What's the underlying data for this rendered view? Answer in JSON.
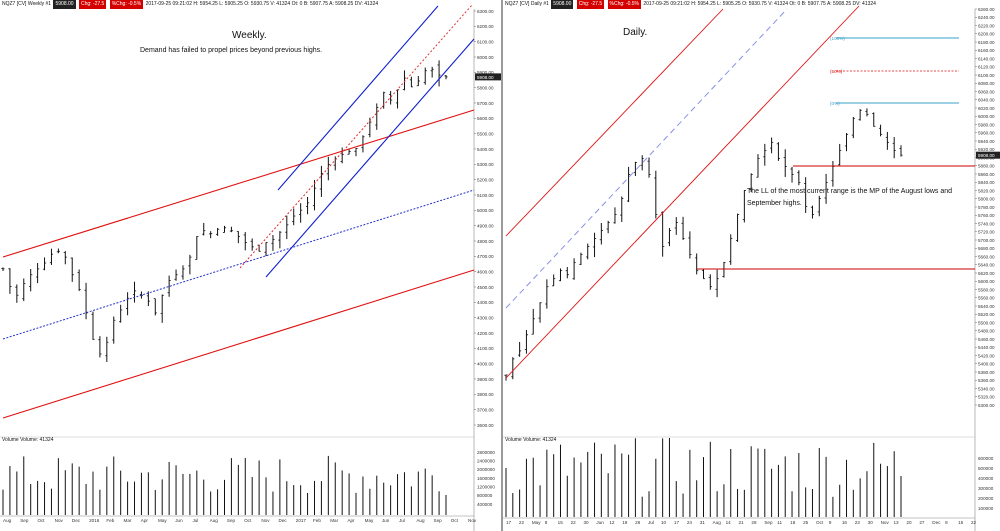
{
  "colors": {
    "up_bar": "#111111",
    "channel_red": "#e01010",
    "channel_blue": "#1020d0",
    "midline_blue": "#2233cc",
    "trend_red_dashed": "#e03030",
    "fib_line": "#3aa0c8",
    "range_red": "#cc0000",
    "price_tag_bg": "#222222"
  },
  "left": {
    "titlebar": {
      "symbol": "NQZ7 [CV]  Weekly  #1",
      "tag1": "5908.00",
      "tag2": "Chg: -27.5",
      "tag3": "%Chg: -0.5%",
      "info": "2017-09-25 09:21:02 H: 5954.25 L: 5905.25 O: 5930.75 V: 41324 Ot: 0 B: 5907.75 A: 5908.25 DV: 41324"
    },
    "title": "Weekly.",
    "subtitle": "Demand has failed to propel prices beyond previous highs.",
    "last_price": "5908.00",
    "volume_label": "Volume  Volume: 41324",
    "y_ticks": [
      "6300.00",
      "6200.00",
      "6100.00",
      "6000.00",
      "5900.00",
      "5800.00",
      "5700.00",
      "5600.00",
      "5500.00",
      "5400.00",
      "5300.00",
      "5200.00",
      "5100.00",
      "5000.00",
      "4900.00",
      "4800.00",
      "4700.00",
      "4600.00",
      "4500.00",
      "4400.00",
      "4300.00",
      "4200.00",
      "4100.00",
      "4000.00",
      "3900.00",
      "3800.00",
      "3700.00",
      "3600.00"
    ],
    "vol_ticks": [
      "2800000",
      "2400000",
      "2000000",
      "1600000",
      "1200000",
      "800000",
      "400000"
    ],
    "x_ticks": [
      "Aug",
      "Sep",
      "Oct",
      "Nov",
      "Dec",
      "2016",
      "Feb",
      "Mar",
      "Apr",
      "May",
      "Jun",
      "Jul",
      "Aug",
      "Sep",
      "Oct",
      "Nov",
      "Dec",
      "2017",
      "Feb",
      "Mar",
      "Apr",
      "May",
      "Jun",
      "Jul",
      "Aug",
      "Sep",
      "Oct",
      "Nov"
    ]
  },
  "right": {
    "titlebar": {
      "symbol": "NQZ7 [CV]  Daily  #1",
      "tag1": "5908.00",
      "tag2": "Chg: -27.5",
      "tag3": "%Chg: -0.5%",
      "info": "2017-09-25 09:21:02 H: 5954.25 L: 5905.25 O: 5930.75 V: 41324 Ot: 0 B: 5907.75 A: 5908.25 DV: 41324"
    },
    "title": "Daily.",
    "note": "The LL of the most current range is the MP of the August lows and September highs.",
    "fib_100": "(100%)",
    "fib_50": "(50%)",
    "fib_0": "(0%)",
    "last_price": "5908.00",
    "volume_label": "Volume  Volume: 41324",
    "y_ticks": [
      "6260.00",
      "6240.00",
      "6220.00",
      "6200.00",
      "6180.00",
      "6160.00",
      "6140.00",
      "6120.00",
      "6100.00",
      "6080.00",
      "6060.00",
      "6040.00",
      "6020.00",
      "6000.00",
      "5980.00",
      "5960.00",
      "5940.00",
      "5920.00",
      "5900.00",
      "5880.00",
      "5860.00",
      "5840.00",
      "5820.00",
      "5800.00",
      "5780.00",
      "5760.00",
      "5740.00",
      "5720.00",
      "5700.00",
      "5680.00",
      "5660.00",
      "5640.00",
      "5620.00",
      "5600.00",
      "5580.00",
      "5560.00",
      "5540.00",
      "5520.00",
      "5500.00",
      "5480.00",
      "5460.00",
      "5440.00",
      "5420.00",
      "5400.00",
      "5380.00",
      "5360.00",
      "5340.00",
      "5320.00",
      "5300.00"
    ],
    "vol_ticks": [
      "600000",
      "500000",
      "400000",
      "300000",
      "200000",
      "100000"
    ],
    "x_ticks": [
      "17",
      "22",
      "May",
      "8",
      "15",
      "22",
      "30",
      "Jun",
      "12",
      "19",
      "26",
      "Jul",
      "10",
      "17",
      "24",
      "31",
      "Aug",
      "14",
      "21",
      "28",
      "Sep",
      "11",
      "18",
      "25",
      "Oct",
      "9",
      "16",
      "23",
      "30",
      "Nov",
      "13",
      "20",
      "27",
      "Dec",
      "8",
      "15",
      "22"
    ]
  },
  "chart_data": [
    {
      "type": "candlestick",
      "title": "Weekly.",
      "ylim": [
        3550,
        6350
      ],
      "series": [
        {
          "name": "NQZ7 [CV] Weekly",
          "close_path": [
            4600,
            4480,
            4420,
            4500,
            4560,
            4600,
            4640,
            4700,
            4720,
            4680,
            4560,
            4460,
            4300,
            4120,
            4020,
            4100,
            4250,
            4320,
            4400,
            4450,
            4420,
            4380,
            4300,
            4420,
            4520,
            4560,
            4600,
            4680,
            4820,
            4860,
            4840,
            4870,
            4880,
            4860,
            4820,
            4780,
            4750,
            4720,
            4780,
            4800,
            4850,
            4900,
            4960,
            5000,
            5050,
            5150,
            5250,
            5310,
            5350,
            5380,
            5400,
            5420,
            5500,
            5600,
            5700,
            5800,
            5750,
            5820,
            5900,
            5840,
            5880,
            5950,
            5960,
            5920,
            5908
          ]
        }
      ]
    },
    {
      "type": "candlestick",
      "title": "Daily.",
      "ylim": [
        5290,
        6270
      ],
      "series": [
        {
          "name": "NQZ7 [CV] Daily",
          "close_path": [
            5360,
            5400,
            5420,
            5460,
            5500,
            5540,
            5580,
            5600,
            5620,
            5610,
            5640,
            5660,
            5680,
            5700,
            5720,
            5740,
            5760,
            5800,
            5860,
            5890,
            5900,
            5860,
            5760,
            5680,
            5720,
            5740,
            5700,
            5660,
            5620,
            5600,
            5580,
            5600,
            5640,
            5700,
            5760,
            5820,
            5860,
            5900,
            5920,
            5940,
            5900,
            5880,
            5860,
            5840,
            5780,
            5760,
            5800,
            5840,
            5880,
            5920,
            5960,
            6000,
            6020,
            6010,
            5980,
            5960,
            5940,
            5920,
            5908
          ]
        }
      ]
    }
  ]
}
